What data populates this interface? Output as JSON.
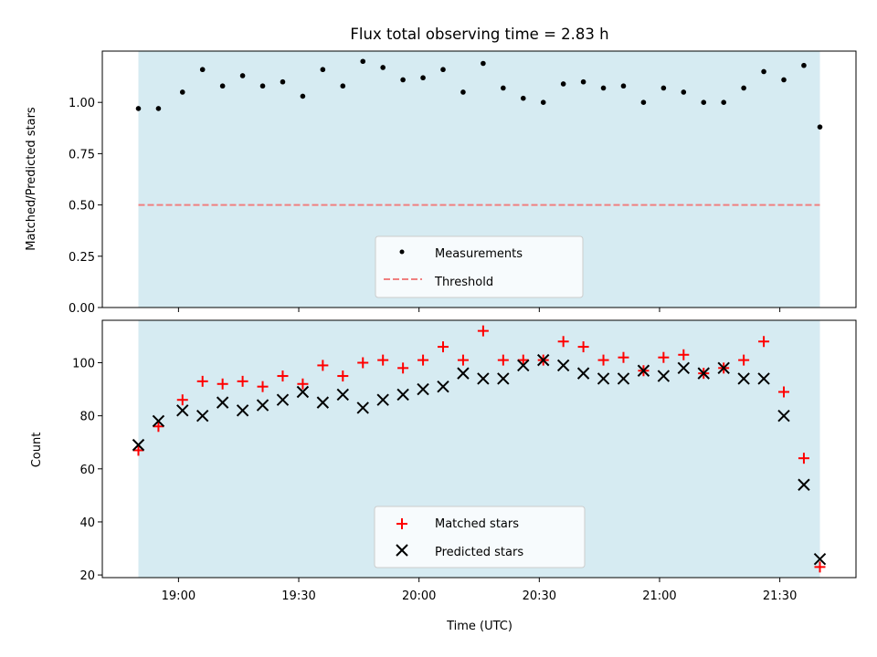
{
  "chart_data": [
    {
      "type": "scatter",
      "title": "Flux total observing time = 2.83 h",
      "xlabel": "",
      "ylabel": "Matched/Predicted stars",
      "ylim": [
        0,
        1.25
      ],
      "yticks": [
        "0.00",
        "0.25",
        "0.50",
        "0.75",
        "1.00"
      ],
      "shaded_region": {
        "x_start": "18:50",
        "x_end": "21:40",
        "color": "#add8e6"
      },
      "legend_placement": "lower-center",
      "series": [
        {
          "name": "Measurements",
          "marker": "dot",
          "color": "#000000",
          "x": [
            "18:50",
            "18:55",
            "19:01",
            "19:06",
            "19:11",
            "19:16",
            "19:21",
            "19:26",
            "19:31",
            "19:36",
            "19:41",
            "19:46",
            "19:51",
            "19:56",
            "20:01",
            "20:06",
            "20:11",
            "20:16",
            "20:21",
            "20:26",
            "20:31",
            "20:36",
            "20:41",
            "20:46",
            "20:51",
            "20:56",
            "21:01",
            "21:06",
            "21:11",
            "21:16",
            "21:21",
            "21:26",
            "21:31",
            "21:36",
            "21:40"
          ],
          "values": [
            0.97,
            0.97,
            1.05,
            1.16,
            1.08,
            1.13,
            1.08,
            1.1,
            1.03,
            1.16,
            1.08,
            1.2,
            1.17,
            1.11,
            1.12,
            1.16,
            1.05,
            1.19,
            1.07,
            1.02,
            1.0,
            1.09,
            1.1,
            1.07,
            1.08,
            1.0,
            1.07,
            1.05,
            1.0,
            1.0,
            1.07,
            1.15,
            1.11,
            1.18,
            0.88
          ]
        },
        {
          "name": "Threshold",
          "style": "dashed-line",
          "color": "#f08080",
          "value": 0.5
        }
      ]
    },
    {
      "type": "scatter",
      "title": "",
      "xlabel": "Time (UTC)",
      "ylabel": "Count",
      "xticks": [
        "19:00",
        "19:30",
        "20:00",
        "20:30",
        "21:00",
        "21:30"
      ],
      "ylim": [
        19,
        116
      ],
      "yticks": [
        "20",
        "40",
        "60",
        "80",
        "100"
      ],
      "shaded_region": {
        "x_start": "18:50",
        "x_end": "21:40",
        "color": "#add8e6"
      },
      "legend_placement": "lower-center",
      "series": [
        {
          "name": "Matched stars",
          "marker": "plus",
          "color": "#ff0000",
          "x": [
            "18:50",
            "18:55",
            "19:01",
            "19:06",
            "19:11",
            "19:16",
            "19:21",
            "19:26",
            "19:31",
            "19:36",
            "19:41",
            "19:46",
            "19:51",
            "19:56",
            "20:01",
            "20:06",
            "20:11",
            "20:16",
            "20:21",
            "20:26",
            "20:31",
            "20:36",
            "20:41",
            "20:46",
            "20:51",
            "20:56",
            "21:01",
            "21:06",
            "21:11",
            "21:16",
            "21:21",
            "21:26",
            "21:31",
            "21:36",
            "21:40"
          ],
          "values": [
            67,
            76,
            86,
            93,
            92,
            93,
            91,
            95,
            92,
            99,
            95,
            100,
            101,
            98,
            101,
            106,
            101,
            112,
            101,
            101,
            101,
            108,
            106,
            101,
            102,
            97,
            102,
            103,
            96,
            98,
            101,
            108,
            89,
            64,
            23
          ]
        },
        {
          "name": "Predicted stars",
          "marker": "x",
          "color": "#000000",
          "x": [
            "18:50",
            "18:55",
            "19:01",
            "19:06",
            "19:11",
            "19:16",
            "19:21",
            "19:26",
            "19:31",
            "19:36",
            "19:41",
            "19:46",
            "19:51",
            "19:56",
            "20:01",
            "20:06",
            "20:11",
            "20:16",
            "20:21",
            "20:26",
            "20:31",
            "20:36",
            "20:41",
            "20:46",
            "20:51",
            "20:56",
            "21:01",
            "21:06",
            "21:11",
            "21:16",
            "21:21",
            "21:26",
            "21:31",
            "21:36",
            "21:40"
          ],
          "values": [
            69,
            78,
            82,
            80,
            85,
            82,
            84,
            86,
            89,
            85,
            88,
            83,
            86,
            88,
            90,
            91,
            96,
            94,
            94,
            99,
            101,
            99,
            96,
            94,
            94,
            97,
            95,
            98,
            96,
            98,
            94,
            94,
            80,
            54,
            26
          ]
        }
      ]
    }
  ]
}
